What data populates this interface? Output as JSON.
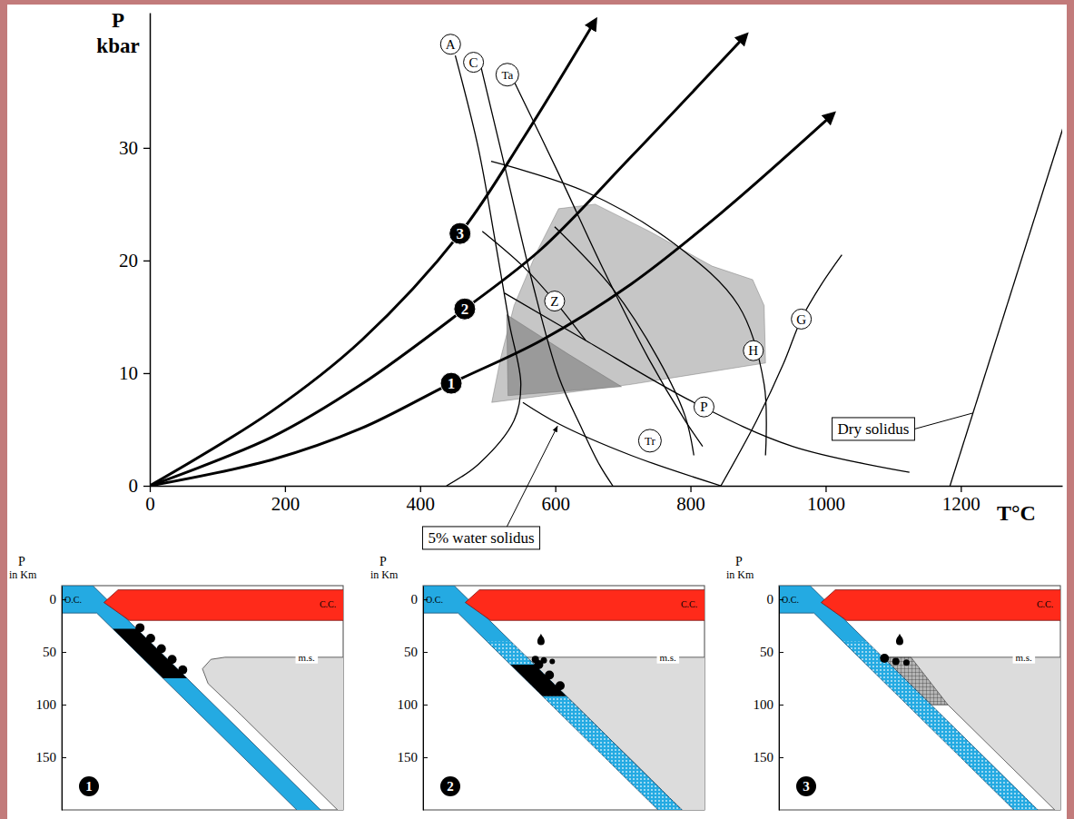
{
  "chart_data": {
    "type": "line",
    "x_label": "T°C",
    "y_label": [
      "P",
      "kbar"
    ],
    "xlim": [
      0,
      1350
    ],
    "ylim": [
      0,
      42
    ],
    "xticks": [
      0,
      200,
      400,
      600,
      800,
      1000,
      1200
    ],
    "yticks": [
      0,
      10,
      20,
      30
    ],
    "geotherms": [
      {
        "name": "1",
        "color": "#000000",
        "marker": "arrow",
        "x": [
          0,
          180,
          313,
          446,
          579,
          712,
          845,
          1011
        ],
        "values": [
          0,
          2.3,
          5.1,
          9.1,
          12.9,
          17.9,
          24.2,
          33.0
        ],
        "label_x": 446,
        "label_y": 9.1
      },
      {
        "name": "2",
        "color": "#000000",
        "marker": "arrow",
        "x": [
          0,
          180,
          313,
          466,
          579,
          712,
          882
        ],
        "values": [
          0,
          4.3,
          9.0,
          15.7,
          21.0,
          29.2,
          40.0
        ],
        "label_x": 466,
        "label_y": 15.7
      },
      {
        "name": "3",
        "color": "#000000",
        "marker": "arrow",
        "x": [
          0,
          180,
          313,
          459,
          552,
          659
        ],
        "values": [
          0,
          6.6,
          12.9,
          22.4,
          30.8,
          41.3
        ],
        "label_x": 459,
        "label_y": 22.4
      }
    ],
    "reaction_curves": [
      {
        "name": "A",
        "color": "#000000",
        "x": [
          452,
          486,
          512,
          532,
          549,
          539,
          486,
          439
        ],
        "values": [
          38.2,
          30.0,
          21.4,
          14.4,
          9.0,
          5.8,
          1.9,
          0
        ],
        "label_x": 445,
        "label_y": 39.2
      },
      {
        "name": "C",
        "color": "#000000",
        "x": [
          486,
          525,
          565,
          605,
          639,
          665,
          685
        ],
        "values": [
          38.2,
          28.4,
          18.3,
          9.7,
          5.1,
          1.9,
          0
        ],
        "label_x": 479,
        "label_y": 37.6
      },
      {
        "name": "Ta",
        "color": "#000000",
        "x": [
          539,
          605,
          672,
          738,
          792,
          818
        ],
        "values": [
          35.9,
          27.7,
          19.1,
          11.3,
          5.8,
          3.5
        ],
        "label_x": 529,
        "label_y": 36.5
      },
      {
        "name": "Z",
        "color": "#000000",
        "x": [
          492,
          552,
          599,
          645
        ],
        "values": [
          22.6,
          19.5,
          16.4,
          12.9
        ],
        "label_x": 599,
        "label_y": 16.4
      },
      {
        "name": "P",
        "color": "#000000",
        "x": [
          525,
          645,
          805,
          951,
          1124
        ],
        "values": [
          17.1,
          12.9,
          7.4,
          3.5,
          1.2
        ],
        "label_x": 820,
        "label_y": 7.0
      },
      {
        "name": "H",
        "color": "#000000",
        "x": [
          505,
          645,
          778,
          871,
          909,
          911
        ],
        "values": [
          28.8,
          26.1,
          21.4,
          16.0,
          9.0,
          2.7
        ],
        "label_x": 893,
        "label_y": 12.0
      },
      {
        "name": "G",
        "color": "#000000",
        "x": [
          845,
          898,
          938,
          964,
          994,
          1024
        ],
        "values": [
          0,
          5.8,
          10.9,
          14.8,
          17.9,
          20.5
        ],
        "label_x": 964,
        "label_y": 14.8
      },
      {
        "name": "Tr",
        "color": "#000000",
        "x": [
          599,
          685,
          752,
          792,
          805
        ],
        "values": [
          23.0,
          17.5,
          11.3,
          6.2,
          2.7
        ],
        "label_x": 740,
        "label_y": 4.0
      }
    ],
    "solidi": [
      {
        "name": "5% water solidus",
        "color": "#000000",
        "x": [
          552,
          605,
          712,
          845
        ],
        "values": [
          7.4,
          5.5,
          2.7,
          0
        ]
      },
      {
        "name": "Dry solidus",
        "color": "#000000",
        "x": [
          1184,
          1354
        ],
        "values": [
          0,
          32.3
        ]
      }
    ],
    "regions": [
      {
        "color": "#c6c6c6",
        "x": [
          506,
          519,
          539,
          572,
          605,
          659,
          739,
          832,
          892,
          909,
          911,
          712
        ],
        "values": [
          7.4,
          11.3,
          16.0,
          20.7,
          24.6,
          25.0,
          22.6,
          19.5,
          18.3,
          16.0,
          10.9,
          9.0
        ]
      },
      {
        "color": "#9a9a9a",
        "x": [
          528,
          530,
          698,
          619
        ],
        "values": [
          15.2,
          8.0,
          8.8,
          11.7
        ]
      }
    ]
  },
  "panels": [
    {
      "number": 1,
      "y_label": [
        "P",
        "in Km"
      ],
      "ylim": [
        -13,
        200
      ],
      "yticks": [
        0,
        50,
        100,
        150
      ],
      "oceanic_crust": "O.C.",
      "continental_crust": "C.C.",
      "mantle_solidus": "m.s."
    },
    {
      "number": 2,
      "y_label": [
        "P",
        "in Km"
      ],
      "ylim": [
        -13,
        200
      ],
      "yticks": [
        0,
        50,
        100,
        150
      ],
      "oceanic_crust": "O.C.",
      "continental_crust": "C.C.",
      "mantle_solidus": "m.s."
    },
    {
      "number": 3,
      "y_label": [
        "P",
        "in Km"
      ],
      "ylim": [
        -13,
        200
      ],
      "yticks": [
        0,
        50,
        100,
        150
      ],
      "oceanic_crust": "O.C.",
      "continental_crust": "C.C.",
      "mantle_solidus": "m.s."
    }
  ]
}
